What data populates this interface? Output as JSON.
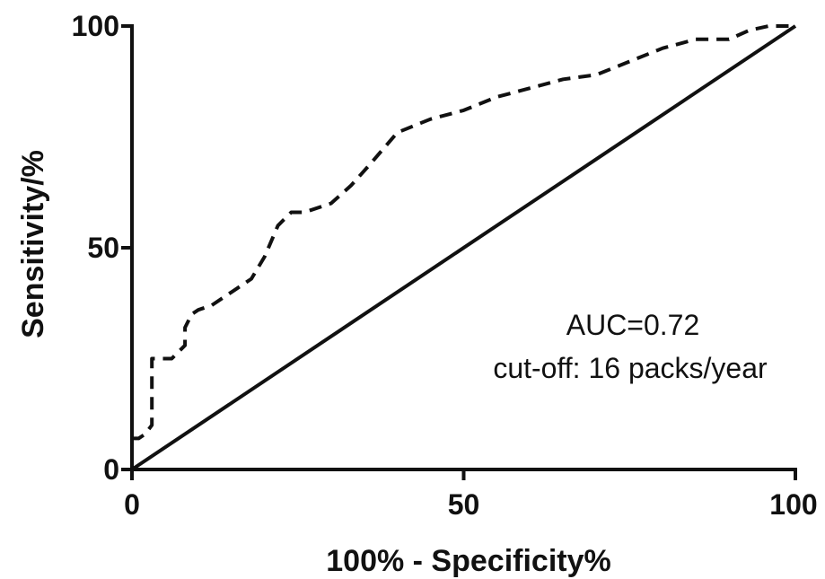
{
  "chart_data": {
    "type": "line",
    "title": "",
    "xlabel": "100% - Specificity%",
    "ylabel": "Sensitivity/%",
    "xlim": [
      0,
      100
    ],
    "ylim": [
      0,
      100
    ],
    "x_ticks": [
      0,
      50,
      100
    ],
    "y_ticks": [
      0,
      50,
      100
    ],
    "x_tick_labels": [
      "0",
      "50",
      "100"
    ],
    "y_tick_labels": [
      "0",
      "50",
      "100"
    ],
    "grid": false,
    "series": [
      {
        "style": "dashed",
        "points": [
          [
            0,
            7
          ],
          [
            1,
            7
          ],
          [
            2,
            8
          ],
          [
            3,
            10
          ],
          [
            3,
            25
          ],
          [
            4,
            25
          ],
          [
            6,
            25
          ],
          [
            8,
            28
          ],
          [
            8,
            32
          ],
          [
            9,
            35
          ],
          [
            10,
            36
          ],
          [
            12,
            37
          ],
          [
            15,
            40
          ],
          [
            18,
            43
          ],
          [
            20,
            48
          ],
          [
            22,
            55
          ],
          [
            24,
            58
          ],
          [
            26,
            58
          ],
          [
            30,
            60
          ],
          [
            33,
            64
          ],
          [
            36,
            69
          ],
          [
            40,
            76
          ],
          [
            45,
            79
          ],
          [
            50,
            81
          ],
          [
            55,
            84
          ],
          [
            60,
            86
          ],
          [
            65,
            88
          ],
          [
            70,
            89
          ],
          [
            75,
            92
          ],
          [
            80,
            95
          ],
          [
            85,
            97
          ],
          [
            90,
            97
          ],
          [
            93,
            99
          ],
          [
            96,
            100
          ],
          [
            100,
            100
          ]
        ]
      },
      {
        "style": "solid",
        "points": [
          [
            0,
            0
          ],
          [
            100,
            100
          ]
        ]
      }
    ],
    "annotations": [
      "AUC=0.72",
      "cut-off: 16 packs/year"
    ]
  }
}
